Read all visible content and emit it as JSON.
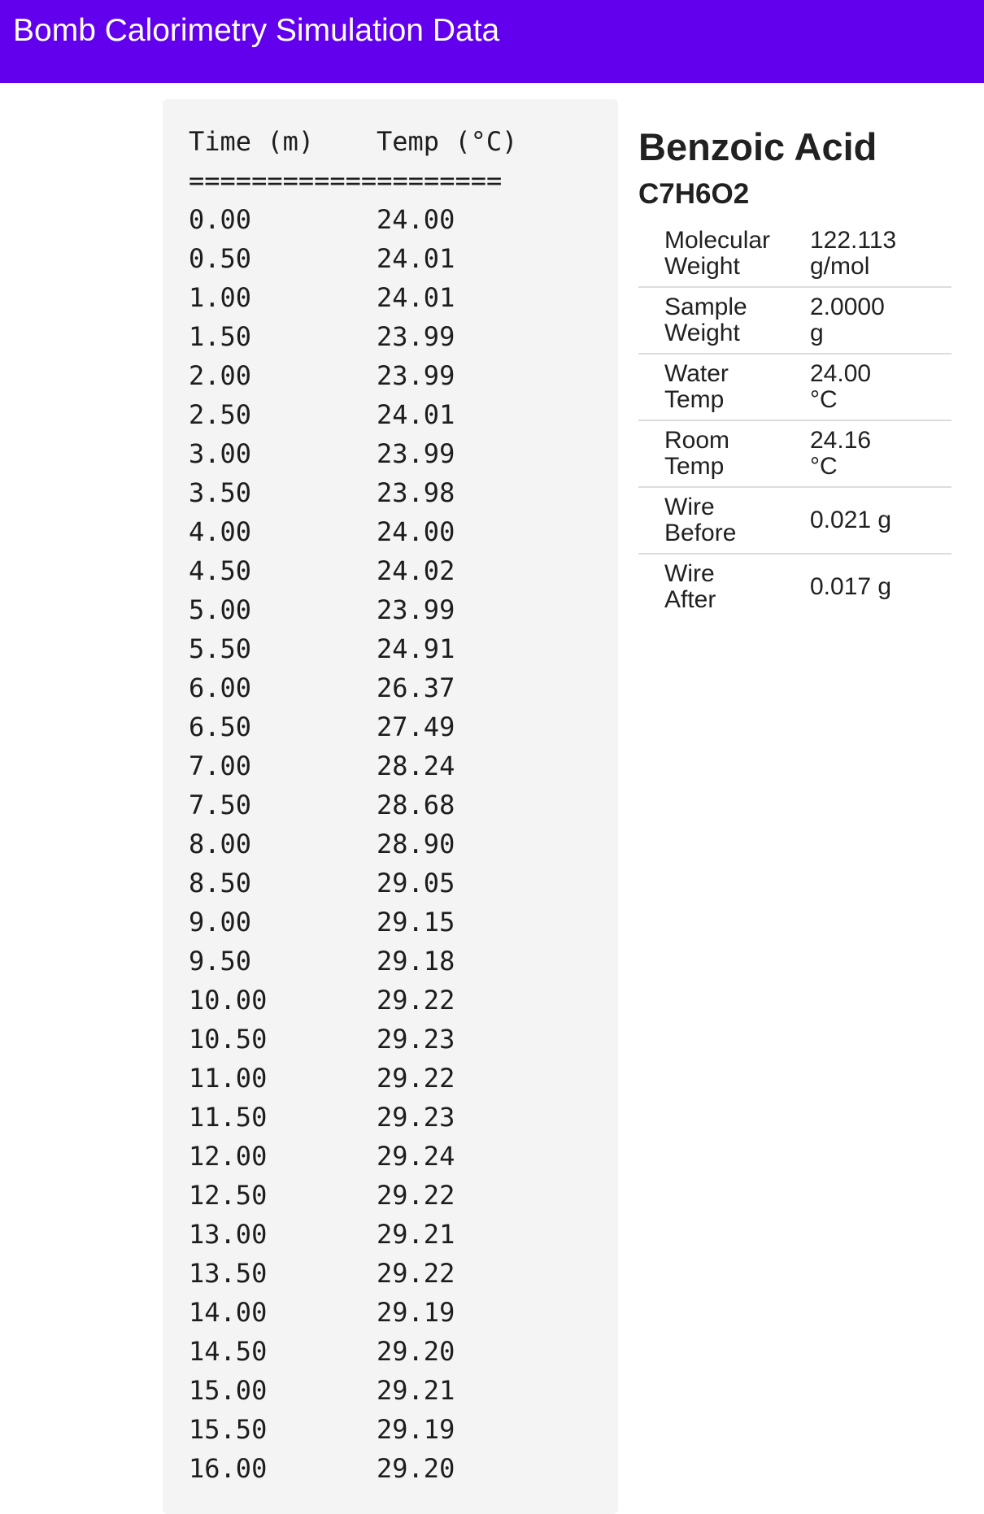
{
  "header": {
    "title": "Bomb Calorimetry Simulation Data"
  },
  "data_table": {
    "columns": [
      "Time (m)",
      "Temp (°C)"
    ],
    "separator": "====================",
    "rows": [
      [
        "0.00",
        "24.00"
      ],
      [
        "0.50",
        "24.01"
      ],
      [
        "1.00",
        "24.01"
      ],
      [
        "1.50",
        "23.99"
      ],
      [
        "2.00",
        "23.99"
      ],
      [
        "2.50",
        "24.01"
      ],
      [
        "3.00",
        "23.99"
      ],
      [
        "3.50",
        "23.98"
      ],
      [
        "4.00",
        "24.00"
      ],
      [
        "4.50",
        "24.02"
      ],
      [
        "5.00",
        "23.99"
      ],
      [
        "5.50",
        "24.91"
      ],
      [
        "6.00",
        "26.37"
      ],
      [
        "6.50",
        "27.49"
      ],
      [
        "7.00",
        "28.24"
      ],
      [
        "7.50",
        "28.68"
      ],
      [
        "8.00",
        "28.90"
      ],
      [
        "8.50",
        "29.05"
      ],
      [
        "9.00",
        "29.15"
      ],
      [
        "9.50",
        "29.18"
      ],
      [
        "10.00",
        "29.22"
      ],
      [
        "10.50",
        "29.23"
      ],
      [
        "11.00",
        "29.22"
      ],
      [
        "11.50",
        "29.23"
      ],
      [
        "12.00",
        "29.24"
      ],
      [
        "12.50",
        "29.22"
      ],
      [
        "13.00",
        "29.21"
      ],
      [
        "13.50",
        "29.22"
      ],
      [
        "14.00",
        "29.19"
      ],
      [
        "14.50",
        "29.20"
      ],
      [
        "15.00",
        "29.21"
      ],
      [
        "15.50",
        "29.19"
      ],
      [
        "16.00",
        "29.20"
      ]
    ]
  },
  "compound": {
    "name": "Benzoic Acid",
    "formula": "C7H6O2",
    "properties": [
      {
        "label_line1": "Molecular",
        "label_line2": "Weight",
        "value_line1": "122.113",
        "value_line2": "g/mol"
      },
      {
        "label_line1": "Sample",
        "label_line2": "Weight",
        "value_line1": "2.0000",
        "value_line2": "g"
      },
      {
        "label_line1": "Water",
        "label_line2": "Temp",
        "value_line1": "24.00",
        "value_line2": "°C"
      },
      {
        "label_line1": "Room",
        "label_line2": "Temp",
        "value_line1": "24.16",
        "value_line2": "°C"
      },
      {
        "label_line1": "Wire",
        "label_line2": "Before",
        "value_line1": "0.021 g",
        "value_line2": ""
      },
      {
        "label_line1": "Wire",
        "label_line2": "After",
        "value_line1": "0.017 g",
        "value_line2": ""
      }
    ]
  },
  "colors": {
    "app_bar": "#6200ee",
    "panel_background": "#f4f4f4",
    "divider": "#dcdcdc"
  }
}
